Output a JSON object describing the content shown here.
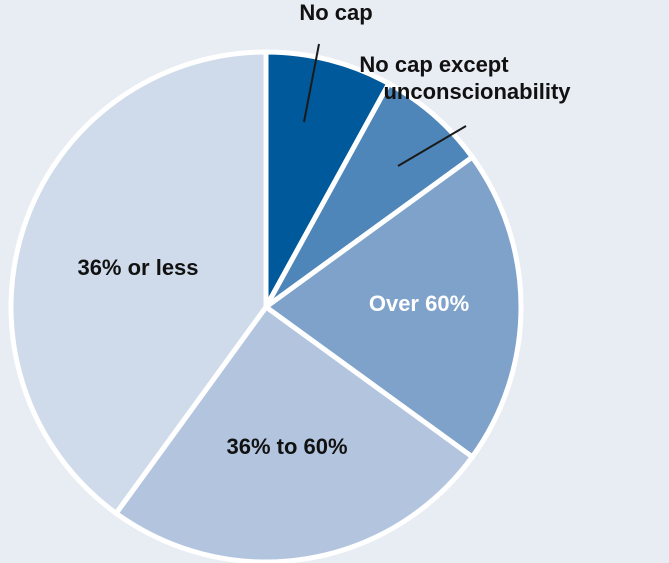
{
  "chart_data": {
    "type": "pie",
    "slices": [
      {
        "label": "No cap",
        "value": 8,
        "color": "#00599a",
        "label_color": "#111111",
        "label_position": "outside"
      },
      {
        "label": "No cap except unconscionability",
        "label_lines": [
          "No cap except",
          "unconscionability"
        ],
        "value": 7,
        "color": "#4f86b9",
        "label_color": "#111111",
        "label_position": "outside"
      },
      {
        "label": "Over 60%",
        "value": 20,
        "color": "#7fa2ca",
        "label_color": "#ffffff",
        "label_position": "inside"
      },
      {
        "label": "36% to 60%",
        "value": 25,
        "color": "#b3c5de",
        "label_color": "#111111",
        "label_position": "inside"
      },
      {
        "label": "36% or less",
        "value": 40,
        "color": "#cfdbea",
        "label_color": "#111111",
        "label_position": "inside"
      }
    ],
    "start_angle_deg": 0,
    "direction": "clockwise",
    "legend": "none"
  }
}
